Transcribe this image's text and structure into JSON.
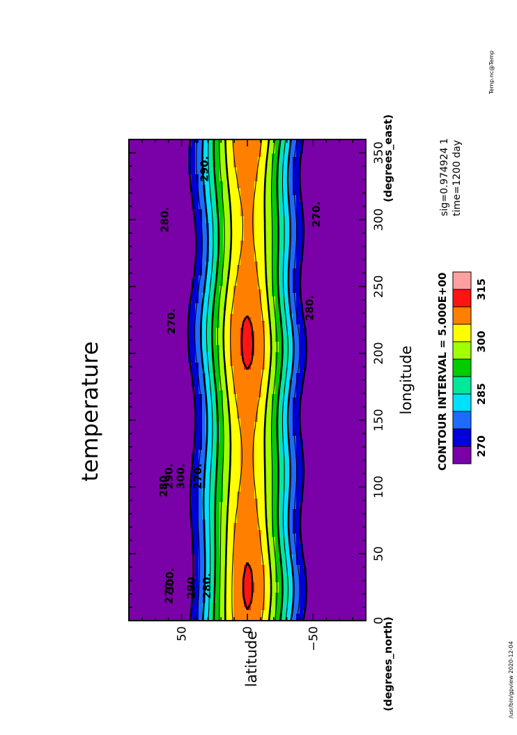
{
  "chart_data": {
    "type": "heatmap",
    "title": "temperature",
    "xlabel": "longitude",
    "x_unit": "(degrees_east)",
    "ylabel": "latitude",
    "y_unit": "(degrees_north)",
    "xlim": [
      0,
      360
    ],
    "ylim": [
      -90,
      90
    ],
    "x_ticks": [
      0,
      50,
      100,
      150,
      200,
      250,
      300,
      350
    ],
    "y_ticks": [
      -50,
      0,
      50
    ],
    "contour_interval_label": "CONTOUR INTERVAL = 5.000E+00",
    "sig_label": "sig=0.974924 1",
    "time_label": "time=1200 day",
    "colorbar": {
      "levels": [
        265,
        270,
        275,
        280,
        285,
        290,
        295,
        300,
        305,
        310,
        315,
        320
      ],
      "tick_labels": [
        "270",
        "285",
        "300",
        "315"
      ],
      "tick_values": [
        270,
        285,
        300,
        315
      ],
      "colors": [
        "#7a00a8",
        "#0000d8",
        "#1e6bff",
        "#00e0ff",
        "#00e89a",
        "#00cc00",
        "#a0ff00",
        "#ffff00",
        "#ff8000",
        "#ff1414",
        "#ffa0a0"
      ]
    },
    "contour_labels": [
      {
        "text": "270.",
        "lon": 22,
        "lat": 57
      },
      {
        "text": "280.",
        "lon": 26,
        "lat": 28
      },
      {
        "text": "290.",
        "lon": 26,
        "lat": 40
      },
      {
        "text": "300.",
        "lon": 30,
        "lat": 56
      },
      {
        "text": "280.",
        "lon": 102,
        "lat": 61
      },
      {
        "text": "290.",
        "lon": 108,
        "lat": 57
      },
      {
        "text": "300.",
        "lon": 108,
        "lat": 48
      },
      {
        "text": "270.",
        "lon": 108,
        "lat": 35
      },
      {
        "text": "270.",
        "lon": 224,
        "lat": 55
      },
      {
        "text": "280.",
        "lon": 234,
        "lat": -50
      },
      {
        "text": "280.",
        "lon": 300,
        "lat": 60
      },
      {
        "text": "290.",
        "lon": 338,
        "lat": 30
      },
      {
        "text": "270.",
        "lon": 304,
        "lat": -55
      }
    ]
  },
  "footer": {
    "path": "/usr/bin/gpview   2020-12-04",
    "file": "Temp.nc@Temp"
  }
}
